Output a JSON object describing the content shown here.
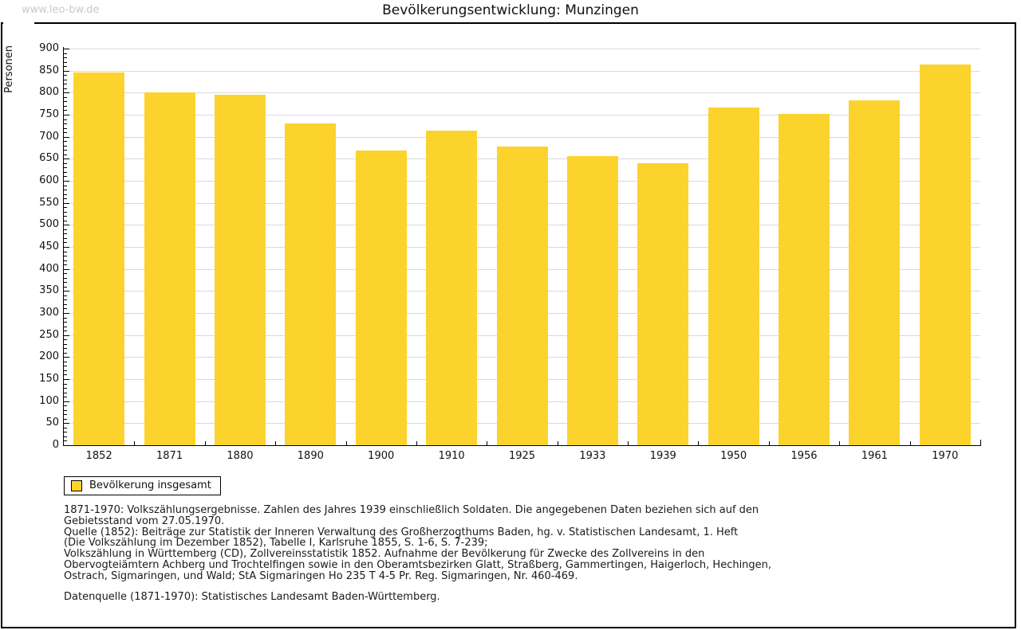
{
  "page": {
    "watermark": "www.leo-bw.de",
    "title": "Bevölkerungsentwicklung: Munzingen"
  },
  "chart_data": {
    "type": "bar",
    "title": "Bevölkerungsentwicklung: Munzingen",
    "ylabel": "Personen",
    "xlabel": "",
    "categories": [
      "1852",
      "1871",
      "1880",
      "1890",
      "1900",
      "1910",
      "1925",
      "1933",
      "1939",
      "1950",
      "1956",
      "1961",
      "1970"
    ],
    "values": [
      846,
      800,
      796,
      730,
      668,
      713,
      678,
      656,
      640,
      767,
      751,
      782,
      864
    ],
    "ylim": [
      0,
      900
    ],
    "ytick_step": 50,
    "y_minor_step": 10,
    "grid": true,
    "legend_position": "bottom-left",
    "bar_color": "#FCD32D",
    "series_name": "Bevölkerung insgesamt"
  },
  "legend": {
    "label": "Bevölkerung insgesamt",
    "swatch_color": "#FCD32D"
  },
  "footer": {
    "notes": [
      "1871-1970: Volkszählungsergebnisse. Zahlen des Jahres 1939 einschließlich Soldaten. Die angegebenen Daten beziehen sich auf den",
      "Gebietsstand vom 27.05.1970.",
      "Quelle (1852): Beiträge zur Statistik der Inneren Verwaltung des Großherzogthums Baden, hg. v. Statistischen Landesamt, 1. Heft",
      "(Die Volkszählung im Dezember 1852), Tabelle I, Karlsruhe 1855, S. 1-6, S. 7-239;",
      "Volkszählung in Württemberg (CD), Zollvereinsstatistik 1852. Aufnahme der Bevölkerung für Zwecke des Zollvereins in den",
      "Obervogteiämtern Achberg und Trochtelfingen sowie in den Oberamtsbezirken Glatt, Straßberg, Gammertingen, Haigerloch, Hechingen,",
      "Ostrach, Sigmaringen, und Wald; StA Sigmaringen Ho 235 T 4-5 Pr. Reg. Sigmaringen, Nr. 460-469."
    ],
    "datasource": "Datenquelle (1871-1970): Statistisches Landesamt Baden-Württemberg."
  }
}
